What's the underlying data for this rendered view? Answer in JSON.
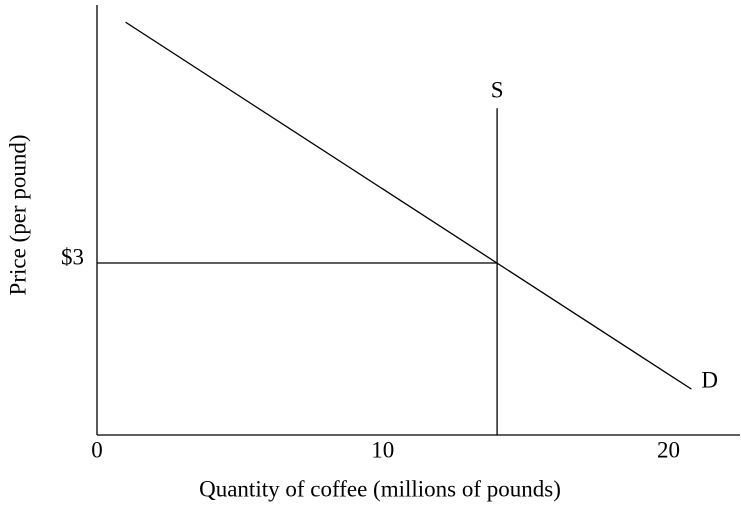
{
  "chart_data": {
    "type": "line",
    "x_label": "Quantity of coffee (millions of pounds)",
    "y_label": "Price (per pound)",
    "xlim": [
      0,
      22.5
    ],
    "ylim": [
      0,
      7.5
    ],
    "xticks": [
      0,
      10,
      20
    ],
    "yticks": [
      {
        "value": 3,
        "label": "$3"
      }
    ],
    "color": "#000000",
    "series": [
      {
        "name": "D",
        "x": [
          1,
          20.8
        ],
        "values": [
          7.2,
          0.8
        ]
      },
      {
        "name": "S",
        "x": [
          14,
          14
        ],
        "values": [
          0,
          5.7
        ]
      }
    ],
    "guides": [
      {
        "x": [
          0,
          14
        ],
        "values": [
          3,
          3
        ]
      }
    ]
  }
}
